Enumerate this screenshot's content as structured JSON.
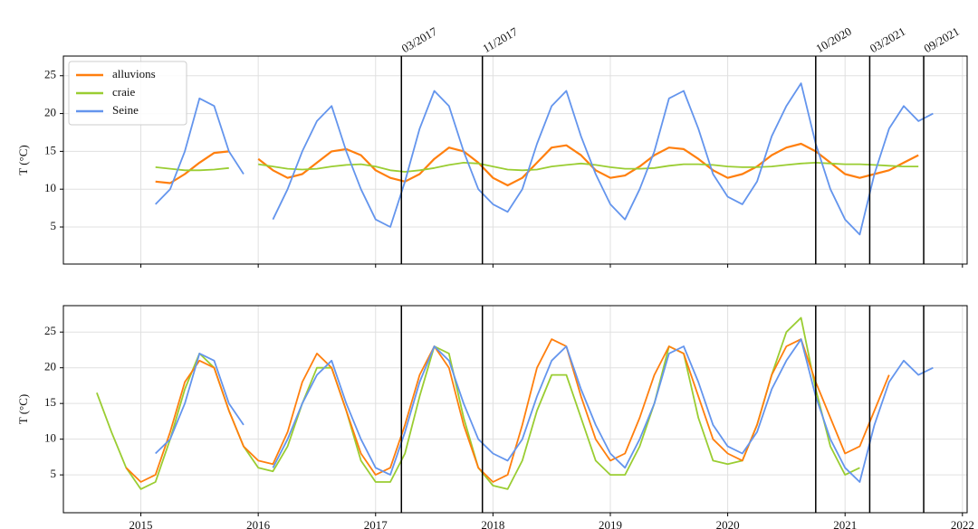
{
  "chart_data": [
    {
      "type": "line",
      "ylabel": "T (°C)",
      "legend": "upper left",
      "grid": true,
      "show_xtick_labels": false,
      "xlim": [
        2014.34,
        2022.04
      ],
      "ylim": [
        0.1,
        27.6
      ],
      "xticks": [
        2015,
        2016,
        2017,
        2018,
        2019,
        2020,
        2021,
        2022
      ],
      "yticks": [
        5,
        10,
        15,
        20,
        25
      ],
      "x": [
        2014.625,
        2014.75,
        2014.875,
        2015,
        2015.125,
        2015.25,
        2015.375,
        2015.5,
        2015.625,
        2015.75,
        2015.875,
        2016,
        2016.125,
        2016.25,
        2016.375,
        2016.5,
        2016.625,
        2016.75,
        2016.875,
        2017,
        2017.125,
        2017.25,
        2017.375,
        2017.5,
        2017.625,
        2017.75,
        2017.875,
        2018,
        2018.125,
        2018.25,
        2018.375,
        2018.5,
        2018.625,
        2018.75,
        2018.875,
        2019,
        2019.125,
        2019.25,
        2019.375,
        2019.5,
        2019.625,
        2019.75,
        2019.875,
        2020,
        2020.125,
        2020.25,
        2020.375,
        2020.5,
        2020.625,
        2020.75,
        2020.875,
        2021,
        2021.125,
        2021.25,
        2021.375,
        2021.5,
        2021.625,
        2021.75
      ],
      "series": [
        {
          "name": "alluvions",
          "color": "#ff7f0e",
          "values": [
            null,
            null,
            null,
            null,
            11,
            10.8,
            12,
            13.5,
            14.8,
            15,
            null,
            14,
            12.5,
            11.5,
            12,
            13.5,
            15,
            15.3,
            14.5,
            12.5,
            11.5,
            11,
            12,
            14,
            15.5,
            15,
            13.5,
            11.5,
            10.5,
            11.5,
            13.5,
            15.5,
            15.8,
            14.5,
            12.5,
            11.5,
            11.8,
            13,
            14.5,
            15.5,
            15.3,
            14,
            12.5,
            11.5,
            12,
            13,
            14.5,
            15.5,
            16,
            15,
            13.5,
            12,
            11.5,
            12,
            12.5,
            13.5,
            14.5,
            null
          ]
        },
        {
          "name": "craie",
          "color": "#9acd32",
          "values": [
            null,
            null,
            null,
            null,
            12.9,
            12.7,
            12.5,
            12.5,
            12.6,
            12.8,
            null,
            13.3,
            13,
            12.7,
            12.6,
            12.7,
            13,
            13.2,
            13.3,
            13,
            12.5,
            12.3,
            12.5,
            12.8,
            13.2,
            13.5,
            13.4,
            13,
            12.6,
            12.5,
            12.6,
            13,
            13.2,
            13.4,
            13.2,
            12.9,
            12.7,
            12.7,
            12.8,
            13.1,
            13.3,
            13.3,
            13.2,
            13,
            12.9,
            12.9,
            13,
            13.2,
            13.4,
            13.5,
            13.4,
            13.3,
            13.3,
            13.2,
            13.1,
            13,
            13,
            null
          ]
        },
        {
          "name": "Seine",
          "color": "#6495ed",
          "values": [
            null,
            null,
            null,
            null,
            8,
            10,
            15,
            22,
            21,
            15,
            12,
            null,
            6,
            10,
            15,
            19,
            21,
            15,
            10,
            6,
            5,
            11,
            18,
            23,
            21,
            15,
            10,
            8,
            7,
            10,
            16,
            21,
            23,
            17,
            12,
            8,
            6,
            10,
            15,
            22,
            23,
            18,
            12,
            9,
            8,
            11,
            17,
            21,
            24,
            16,
            10,
            6,
            4,
            12,
            18,
            21,
            19,
            20
          ]
        }
      ],
      "annotations": [
        {
          "x": 2017.22,
          "label": "03/2017"
        },
        {
          "x": 2017.91,
          "label": "11/2017"
        },
        {
          "x": 2020.75,
          "label": "10/2020"
        },
        {
          "x": 2021.21,
          "label": "03/2021"
        },
        {
          "x": 2021.67,
          "label": "09/2021"
        }
      ]
    },
    {
      "type": "line",
      "ylabel": "T (°C)",
      "grid": true,
      "show_xtick_labels": true,
      "xlim": [
        2014.34,
        2022.04
      ],
      "ylim": [
        -0.3,
        28.7
      ],
      "xticks": [
        2015,
        2016,
        2017,
        2018,
        2019,
        2020,
        2021,
        2022
      ],
      "yticks": [
        5,
        10,
        15,
        20,
        25
      ],
      "vlines": [
        2017.22,
        2017.91,
        2020.75,
        2021.21,
        2021.67
      ],
      "x": [
        2014.625,
        2014.75,
        2014.875,
        2015,
        2015.125,
        2015.25,
        2015.375,
        2015.5,
        2015.625,
        2015.75,
        2015.875,
        2016,
        2016.125,
        2016.25,
        2016.375,
        2016.5,
        2016.625,
        2016.75,
        2016.875,
        2017,
        2017.125,
        2017.25,
        2017.375,
        2017.5,
        2017.625,
        2017.75,
        2017.875,
        2018,
        2018.125,
        2018.25,
        2018.375,
        2018.5,
        2018.625,
        2018.75,
        2018.875,
        2019,
        2019.125,
        2019.25,
        2019.375,
        2019.5,
        2019.625,
        2019.75,
        2019.875,
        2020,
        2020.125,
        2020.25,
        2020.375,
        2020.5,
        2020.625,
        2020.75,
        2020.875,
        2021,
        2021.125,
        2021.25,
        2021.375,
        2021.5,
        2021.625,
        2021.75
      ],
      "series": [
        {
          "name": "craie",
          "color": "#9acd32",
          "values": [
            16.5,
            11,
            6,
            3,
            4,
            10,
            17,
            22,
            20,
            14,
            9,
            6,
            5.5,
            9,
            15,
            20,
            20,
            14,
            7,
            4,
            4,
            8,
            16,
            23,
            22,
            13,
            6,
            3.5,
            3,
            7,
            14,
            19,
            19,
            13,
            7,
            5,
            5,
            9,
            15,
            23,
            22,
            13,
            7,
            6.5,
            7,
            12,
            19,
            25,
            27,
            17,
            9,
            5,
            6,
            null,
            null,
            null,
            null,
            null
          ]
        },
        {
          "name": "alluvions",
          "color": "#ff7f0e",
          "values": [
            null,
            null,
            6,
            4,
            5,
            11,
            18,
            21,
            20,
            14,
            9,
            7,
            6.5,
            11,
            18,
            22,
            20,
            14,
            8,
            5,
            6,
            12,
            19,
            23,
            20,
            12,
            6,
            4,
            5,
            12,
            20,
            24,
            23,
            16,
            10,
            7,
            8,
            13,
            19,
            23,
            22,
            16,
            10,
            8,
            7,
            12,
            19,
            23,
            24,
            18,
            13,
            8,
            9,
            14,
            19,
            null,
            null,
            null
          ]
        },
        {
          "name": "Seine",
          "color": "#6495ed",
          "values": [
            null,
            null,
            null,
            null,
            8,
            10,
            15,
            22,
            21,
            15,
            12,
            null,
            6,
            10,
            15,
            19,
            21,
            15,
            10,
            6,
            5,
            11,
            18,
            23,
            21,
            15,
            10,
            8,
            7,
            10,
            16,
            21,
            23,
            17,
            12,
            8,
            6,
            10,
            15,
            22,
            23,
            18,
            12,
            9,
            8,
            11,
            17,
            21,
            24,
            16,
            10,
            6,
            4,
            12,
            18,
            21,
            19,
            20
          ]
        }
      ]
    }
  ]
}
